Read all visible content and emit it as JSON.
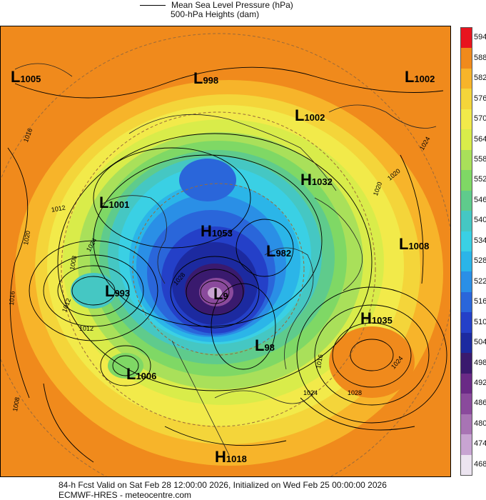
{
  "legend": {
    "pressure_label": "Mean Sea Level Pressure (hPa)",
    "heights_label": "500-hPa Heights (dam)"
  },
  "colorbar": {
    "values": [
      "594",
      "588",
      "582",
      "576",
      "570",
      "564",
      "558",
      "552",
      "546",
      "540",
      "534",
      "528",
      "522",
      "516",
      "510",
      "504",
      "498",
      "492",
      "486",
      "480",
      "474",
      "468"
    ],
    "colors": [
      "#e8141e",
      "#f08a1c",
      "#f7b42a",
      "#f4d53a",
      "#f2ea4a",
      "#d9ec4a",
      "#a9e05a",
      "#7fd865",
      "#5fcb8c",
      "#45c7c3",
      "#3ad0e4",
      "#2bb5e8",
      "#2a8fe6",
      "#2a66da",
      "#2440c8",
      "#1c2aa0",
      "#3a1a6e",
      "#6a2a86",
      "#8a4a9c",
      "#a874b4",
      "#c8a4d2",
      "#ece4f0"
    ]
  },
  "systems": [
    {
      "type": "L",
      "value": "1005"
    },
    {
      "type": "L",
      "value": "998"
    },
    {
      "type": "L",
      "value": "1002"
    },
    {
      "type": "L",
      "value": "1002"
    },
    {
      "type": "H",
      "value": "1032"
    },
    {
      "type": "L",
      "value": "1001"
    },
    {
      "type": "H",
      "value": "1053"
    },
    {
      "type": "L",
      "value": "982"
    },
    {
      "type": "L",
      "value": "1008"
    },
    {
      "type": "L",
      "value": "993"
    },
    {
      "type": "L",
      "value": "9"
    },
    {
      "type": "H",
      "value": "1035"
    },
    {
      "type": "L",
      "value": "98"
    },
    {
      "type": "L",
      "value": "1006"
    },
    {
      "type": "H",
      "value": "1018"
    }
  ],
  "isobar_labels": [
    "1016",
    "1012",
    "1020",
    "1008",
    "1016",
    "1024",
    "1028",
    "1020",
    "1024",
    "1024",
    "1012",
    "1024",
    "1028",
    "1012",
    "1016",
    "1020",
    "1008"
  ],
  "footer": {
    "line1": "84-h Fcst Valid on Sat Feb 28 12:00:00 2026, Initialized on Wed Feb 25 00:00:00 2026",
    "line2": "ECMWF-HRES  - meteocentre.com"
  }
}
